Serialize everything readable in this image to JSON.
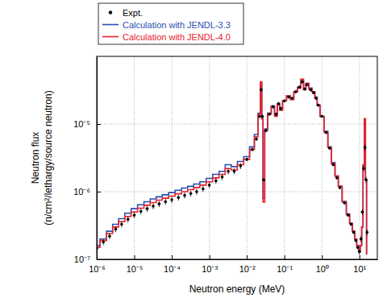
{
  "chart_data": {
    "type": "line",
    "xlabel": "Neutron energy (MeV)",
    "ylabel": [
      "Neutron flux",
      "(n/cm²/lethargy/source neutron)"
    ],
    "log": true,
    "grid": true,
    "legend": "top-left",
    "xlim": [
      1e-06,
      30
    ],
    "ylim": [
      1e-07,
      0.0001
    ],
    "xticks": [
      {
        "value": 1e-06,
        "label": "10⁻⁶"
      },
      {
        "value": 1e-05,
        "label": "10⁻⁵"
      },
      {
        "value": 0.0001,
        "label": "10⁻⁴"
      },
      {
        "value": 0.001,
        "label": "10⁻³"
      },
      {
        "value": 0.01,
        "label": "10⁻²"
      },
      {
        "value": 0.1,
        "label": "10⁻¹"
      },
      {
        "value": 1,
        "label": "10⁰"
      },
      {
        "value": 10,
        "label": "10¹"
      }
    ],
    "yticks": [
      {
        "value": 1e-07,
        "label": "10⁻⁷"
      },
      {
        "value": 1e-06,
        "label": "10⁻⁶"
      },
      {
        "value": 1e-05,
        "label": "10⁻⁵"
      }
    ],
    "x": [
      1e-06,
      1.5e-06,
      2.2e-06,
      3.2e-06,
      4.6e-06,
      6.8e-06,
      1e-05,
      1.5e-05,
      2.2e-05,
      3.2e-05,
      4.6e-05,
      6.8e-05,
      0.0001,
      0.00015,
      0.00022,
      0.00032,
      0.00046,
      0.00068,
      0.001,
      0.0015,
      0.0022,
      0.0032,
      0.0046,
      0.0068,
      0.01,
      0.014,
      0.018,
      0.022,
      0.024,
      0.026,
      0.028,
      0.032,
      0.04,
      0.05,
      0.06,
      0.07,
      0.08,
      0.1,
      0.13,
      0.16,
      0.2,
      0.25,
      0.3,
      0.35,
      0.4,
      0.5,
      0.6,
      0.7,
      0.8,
      1,
      1.3,
      1.6,
      2,
      2.5,
      3,
      4,
      5,
      6,
      7,
      8,
      9,
      10,
      11,
      12,
      13,
      14,
      15,
      16
    ],
    "series": [
      {
        "name": "Expt.",
        "type": "scatter",
        "marker": "circle",
        "color": "#000000",
        "values": [
          1.45e-07,
          1.8e-07,
          2.2e-07,
          2.8e-07,
          3.3e-07,
          3.9e-07,
          4.5e-07,
          5.1e-07,
          5.6e-07,
          6.1e-07,
          6.6e-07,
          7.1e-07,
          7.6e-07,
          8.2e-07,
          8.8e-07,
          9.4e-07,
          1e-06,
          1.1e-06,
          1.25e-06,
          1.45e-06,
          1.65e-06,
          2e-06,
          2e-06,
          2.4e-06,
          3e-06,
          4.2e-06,
          6e-06,
          1.3e-05,
          3.2e-05,
          1.3e-05,
          1.5e-06,
          8e-06,
          1.4e-05,
          1.8e-05,
          1.4e-05,
          2e-05,
          1.7e-05,
          2.2e-05,
          2.5e-05,
          2.4e-05,
          3e-05,
          3.5e-05,
          4.2e-05,
          3.3e-05,
          3.8e-05,
          3.2e-05,
          2.9e-05,
          2.4e-05,
          1.9e-05,
          1.3e-05,
          7.5e-06,
          4.4e-06,
          2.5e-06,
          1.6e-06,
          1.15e-06,
          6.8e-07,
          4.5e-07,
          3.3e-07,
          2.5e-07,
          1.9e-07,
          1.5e-07,
          1.3e-07,
          2e-07,
          5e-07,
          2.2e-06,
          4.5e-06,
          1.5e-06,
          2.5e-07
        ],
        "errors": [
          1.5e-08,
          1.8e-08,
          2.2e-08,
          2.8e-08,
          3.3e-08,
          3.9e-08,
          4.5e-08,
          5.1e-08,
          5.6e-08,
          6.1e-08,
          6.6e-08,
          7.1e-08,
          7.6e-08,
          8.2e-08,
          8.8e-08,
          9.4e-08,
          1e-07,
          1.1e-07,
          1.25e-07,
          1.45e-07,
          1.65e-07,
          2e-07,
          2e-07,
          2.4e-07,
          1.8e-07,
          2.5e-07,
          3.6e-07,
          7.8e-07,
          1.9e-06,
          7.8e-07,
          9e-08,
          4.8e-07,
          8.4e-07,
          1.1e-06,
          8.4e-07,
          1.2e-06,
          1e-06,
          1.1e-06,
          1.25e-06,
          1.2e-06,
          1.5e-06,
          1.75e-06,
          2.1e-06,
          1.65e-06,
          1.9e-06,
          1.6e-06,
          1.45e-06,
          1.2e-06,
          9.5e-07,
          6.5e-07,
          3.75e-07,
          2.2e-07,
          1.25e-07,
          8e-08,
          5.8e-08,
          3.4e-08,
          2.3e-08,
          1.7e-08,
          1.3e-08,
          1e-08,
          8e-09,
          1.3e-08,
          2e-08,
          5e-08,
          2.2e-07,
          4.5e-07,
          1.5e-07,
          2.5e-08
        ]
      },
      {
        "name": "Calculation with JENDL-3.3",
        "type": "line",
        "line_style": "step",
        "color": "#2a4fb0",
        "values": [
          1.6e-07,
          2e-07,
          2.6e-07,
          3.3e-07,
          4e-07,
          4.8e-07,
          5.6e-07,
          6.4e-07,
          7.1e-07,
          7.8e-07,
          8.4e-07,
          9e-07,
          9.7e-07,
          1.05e-06,
          1.13e-06,
          1.2e-06,
          1.3e-06,
          1.4e-06,
          1.57e-06,
          1.8e-06,
          2e-06,
          2.5e-06,
          2.35e-06,
          2.8e-06,
          3.3e-06,
          4.6e-06,
          7e-06,
          1.45e-05,
          4e-05,
          1.2e-05,
          8e-07,
          8.5e-06,
          1.45e-05,
          1.85e-05,
          1.35e-05,
          2e-05,
          1.65e-05,
          2.2e-05,
          2.6e-05,
          2.4e-05,
          3e-05,
          3.5e-05,
          4.4e-05,
          3.3e-05,
          4e-05,
          3.4e-05,
          3e-05,
          2.5e-05,
          1.9e-05,
          1.3e-05,
          7.8e-06,
          4.6e-06,
          2.7e-06,
          1.7e-06,
          1.2e-06,
          7.2e-07,
          4.7e-07,
          3.4e-07,
          2.6e-07,
          2e-07,
          1.6e-07,
          1.3e-07,
          1.6e-07,
          3e-07,
          2.4e-06,
          1.1e-05,
          1.5e-06,
          1.2e-07
        ]
      },
      {
        "name": "Calculation with JENDL-4.0",
        "type": "line",
        "line_style": "step",
        "color": "#e8202a",
        "values": [
          1.5e-07,
          1.9e-07,
          2.4e-07,
          3e-07,
          3.6e-07,
          4.3e-07,
          5e-07,
          5.7e-07,
          6.3e-07,
          6.9e-07,
          7.5e-07,
          8e-07,
          8.6e-07,
          9.3e-07,
          1e-06,
          1.07e-06,
          1.15e-06,
          1.25e-06,
          1.4e-06,
          1.6e-06,
          1.8e-06,
          2.2e-06,
          2.1e-06,
          2.5e-06,
          3e-06,
          4.2e-06,
          6.5e-06,
          1.4e-05,
          4.2e-05,
          1.2e-05,
          7e-07,
          8e-06,
          1.4e-05,
          1.8e-05,
          1.3e-05,
          2e-05,
          1.6e-05,
          2.2e-05,
          2.6e-05,
          2.3e-05,
          3e-05,
          3.4e-05,
          4.6e-05,
          3.2e-05,
          4e-05,
          3.3e-05,
          3e-05,
          2.4e-05,
          1.9e-05,
          1.3e-05,
          7.5e-06,
          4.5e-06,
          2.6e-06,
          1.7e-06,
          1.2e-06,
          7e-07,
          4.6e-07,
          3.4e-07,
          2.6e-07,
          2e-07,
          1.6e-07,
          1.3e-07,
          1.6e-07,
          3e-07,
          2.5e-06,
          1.2e-05,
          1.5e-06,
          1.2e-07
        ]
      }
    ]
  }
}
